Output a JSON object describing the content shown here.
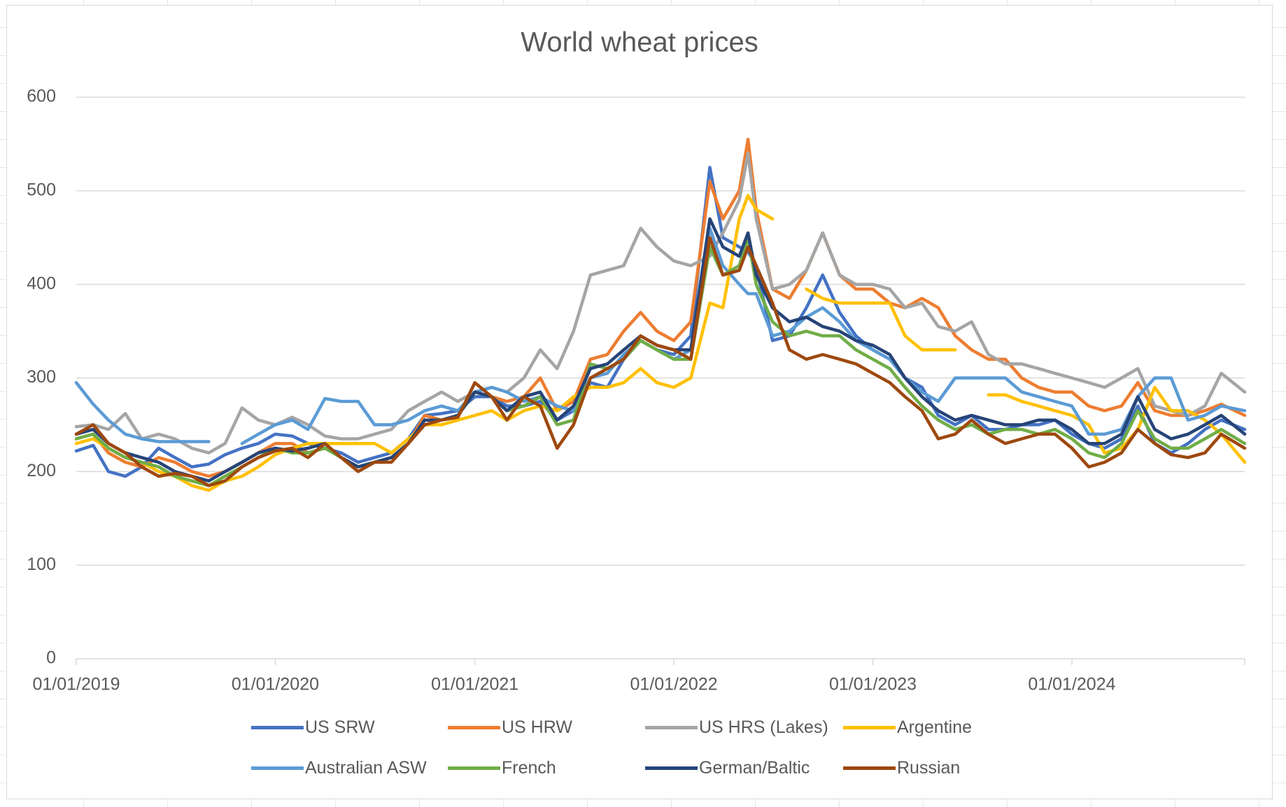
{
  "chart_data": {
    "type": "line",
    "title": "World wheat prices",
    "xlabel": "",
    "ylabel": "",
    "x_axis_type": "date",
    "xlim": [
      "2019-01-01",
      "2024-11-13"
    ],
    "ylim": [
      0,
      600
    ],
    "y_ticks": [
      0,
      100,
      200,
      300,
      400,
      500,
      600
    ],
    "y_tick_labels": [
      "0",
      "100",
      "200",
      "300",
      "400",
      "500",
      "600"
    ],
    "x_ticks": [
      "2019-01-01",
      "2020-01-01",
      "2021-01-01",
      "2022-01-01",
      "2023-01-01",
      "2024-01-01"
    ],
    "x_tick_labels": [
      "01/01/2019",
      "01/01/2020",
      "01/01/2021",
      "01/01/2022",
      "01/01/2023",
      "01/01/2024"
    ],
    "grid": "horizontal",
    "legend_position": "bottom",
    "x": [
      "2019-01-01",
      "2019-02-01",
      "2019-03-01",
      "2019-04-01",
      "2019-05-01",
      "2019-06-01",
      "2019-07-01",
      "2019-08-01",
      "2019-09-01",
      "2019-10-01",
      "2019-11-01",
      "2019-12-01",
      "2020-01-01",
      "2020-02-01",
      "2020-03-01",
      "2020-04-01",
      "2020-05-01",
      "2020-06-01",
      "2020-07-01",
      "2020-08-01",
      "2020-09-01",
      "2020-10-01",
      "2020-11-01",
      "2020-12-01",
      "2021-01-01",
      "2021-02-01",
      "2021-03-01",
      "2021-04-01",
      "2021-05-01",
      "2021-06-01",
      "2021-07-01",
      "2021-08-01",
      "2021-09-01",
      "2021-10-01",
      "2021-11-01",
      "2021-12-01",
      "2022-01-01",
      "2022-02-01",
      "2022-03-08",
      "2022-04-01",
      "2022-05-01",
      "2022-05-17",
      "2022-06-01",
      "2022-07-01",
      "2022-08-01",
      "2022-09-01",
      "2022-10-01",
      "2022-11-01",
      "2022-12-01",
      "2023-01-01",
      "2023-02-01",
      "2023-03-01",
      "2023-04-01",
      "2023-05-01",
      "2023-06-01",
      "2023-07-01",
      "2023-08-01",
      "2023-09-01",
      "2023-10-01",
      "2023-11-01",
      "2023-12-01",
      "2024-01-01",
      "2024-02-01",
      "2024-03-01",
      "2024-04-01",
      "2024-05-01",
      "2024-06-01",
      "2024-07-01",
      "2024-08-01",
      "2024-09-01",
      "2024-10-01",
      "2024-11-13"
    ],
    "series": [
      {
        "name": "US SRW",
        "color": "#4472C4",
        "values": [
          222,
          228,
          200,
          195,
          205,
          225,
          215,
          205,
          208,
          218,
          225,
          230,
          240,
          238,
          230,
          225,
          220,
          210,
          215,
          220,
          235,
          260,
          262,
          265,
          280,
          280,
          270,
          270,
          275,
          255,
          265,
          295,
          290,
          320,
          340,
          330,
          325,
          345,
          525,
          450,
          440,
          435,
          420,
          340,
          345,
          375,
          410,
          370,
          345,
          330,
          320,
          300,
          290,
          260,
          250,
          260,
          245,
          245,
          250,
          250,
          255,
          240,
          230,
          225,
          235,
          270,
          230,
          220,
          230,
          245,
          255,
          245
        ]
      },
      {
        "name": "US HRW",
        "color": "#ED7D31",
        "values": [
          235,
          240,
          220,
          210,
          205,
          215,
          210,
          200,
          195,
          200,
          210,
          220,
          230,
          230,
          220,
          225,
          215,
          205,
          210,
          215,
          230,
          260,
          255,
          260,
          285,
          280,
          275,
          280,
          300,
          265,
          275,
          320,
          325,
          350,
          370,
          350,
          340,
          360,
          510,
          470,
          500,
          555,
          480,
          395,
          385,
          415,
          455,
          410,
          395,
          395,
          380,
          375,
          385,
          375,
          345,
          330,
          320,
          320,
          300,
          290,
          285,
          285,
          270,
          265,
          270,
          295,
          265,
          260,
          260,
          265,
          272,
          260
        ]
      },
      {
        "name": "US HRS (Lakes)",
        "color": "#A5A5A5",
        "values": [
          248,
          250,
          245,
          262,
          235,
          240,
          235,
          225,
          220,
          230,
          268,
          255,
          250,
          258,
          250,
          238,
          235,
          235,
          240,
          245,
          265,
          275,
          285,
          275,
          285,
          290,
          285,
          300,
          330,
          310,
          350,
          410,
          415,
          420,
          460,
          440,
          425,
          420,
          430,
          455,
          490,
          540,
          470,
          395,
          400,
          415,
          455,
          410,
          400,
          400,
          395,
          375,
          380,
          355,
          350,
          360,
          325,
          315,
          315,
          310,
          305,
          300,
          295,
          290,
          300,
          310,
          270,
          265,
          260,
          270,
          305,
          285
        ]
      },
      {
        "name": "Argentine",
        "color": "#FFC000",
        "values": [
          230,
          235,
          225,
          215,
          210,
          200,
          195,
          185,
          180,
          190,
          195,
          205,
          218,
          225,
          230,
          230,
          230,
          230,
          230,
          220,
          235,
          250,
          250,
          255,
          260,
          265,
          255,
          265,
          270,
          265,
          280,
          290,
          290,
          295,
          310,
          295,
          290,
          300,
          380,
          375,
          470,
          495,
          480,
          470,
          null,
          395,
          385,
          380,
          380,
          380,
          380,
          345,
          330,
          330,
          330,
          null,
          282,
          282,
          275,
          270,
          265,
          260,
          250,
          220,
          225,
          245,
          290,
          265,
          265,
          255,
          240,
          210
        ]
      },
      {
        "name": "Australian ASW",
        "color": "#5B9BD5",
        "values": [
          295,
          272,
          255,
          240,
          235,
          232,
          232,
          232,
          232,
          null,
          230,
          240,
          250,
          255,
          245,
          278,
          275,
          275,
          250,
          250,
          255,
          265,
          270,
          265,
          285,
          290,
          285,
          275,
          280,
          270,
          265,
          300,
          305,
          325,
          340,
          330,
          320,
          330,
          460,
          420,
          400,
          390,
          390,
          345,
          350,
          365,
          375,
          360,
          340,
          330,
          320,
          300,
          285,
          275,
          300,
          300,
          300,
          300,
          285,
          280,
          275,
          270,
          240,
          240,
          245,
          280,
          300,
          300,
          255,
          260,
          270,
          265
        ]
      },
      {
        "name": "French",
        "color": "#70AD47",
        "values": [
          235,
          240,
          225,
          215,
          210,
          205,
          195,
          190,
          185,
          195,
          205,
          215,
          225,
          220,
          220,
          225,
          215,
          205,
          210,
          215,
          230,
          255,
          255,
          260,
          285,
          280,
          265,
          270,
          280,
          250,
          255,
          315,
          310,
          320,
          340,
          330,
          320,
          320,
          440,
          410,
          420,
          450,
          400,
          360,
          345,
          350,
          345,
          345,
          330,
          320,
          310,
          290,
          270,
          255,
          245,
          250,
          240,
          245,
          245,
          240,
          245,
          235,
          220,
          215,
          230,
          265,
          235,
          225,
          225,
          235,
          245,
          230
        ]
      },
      {
        "name": "German/Baltic",
        "color": "#264478",
        "values": [
          240,
          245,
          230,
          220,
          215,
          210,
          200,
          195,
          190,
          200,
          210,
          220,
          225,
          222,
          225,
          230,
          215,
          205,
          210,
          215,
          230,
          255,
          255,
          260,
          285,
          280,
          265,
          280,
          285,
          255,
          270,
          310,
          315,
          330,
          345,
          335,
          330,
          330,
          470,
          440,
          430,
          455,
          410,
          375,
          360,
          365,
          355,
          350,
          340,
          335,
          325,
          300,
          280,
          265,
          255,
          260,
          255,
          250,
          250,
          255,
          255,
          245,
          230,
          230,
          240,
          280,
          245,
          235,
          240,
          250,
          260,
          240
        ]
      },
      {
        "name": "Russian",
        "color": "#9E480E",
        "values": [
          240,
          250,
          230,
          220,
          205,
          195,
          198,
          195,
          185,
          190,
          205,
          215,
          222,
          225,
          215,
          230,
          215,
          200,
          210,
          210,
          230,
          250,
          255,
          258,
          295,
          280,
          255,
          280,
          270,
          225,
          250,
          300,
          310,
          320,
          345,
          335,
          330,
          320,
          450,
          410,
          415,
          440,
          420,
          380,
          330,
          320,
          325,
          320,
          315,
          305,
          295,
          280,
          265,
          235,
          240,
          255,
          240,
          230,
          235,
          240,
          240,
          225,
          205,
          210,
          220,
          245,
          230,
          218,
          215,
          220,
          240,
          225
        ]
      }
    ]
  }
}
